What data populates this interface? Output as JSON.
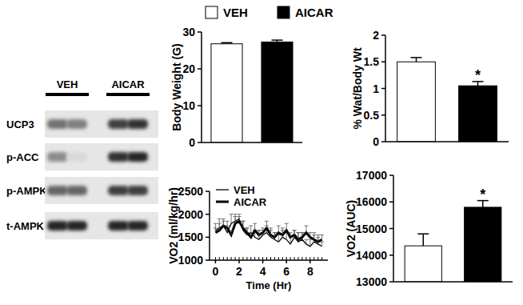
{
  "figure_legend": [
    {
      "name": "VEH",
      "color": "#ffffff"
    },
    {
      "name": "AICAR",
      "color": "#000000"
    }
  ],
  "blot": {
    "columns": [
      "VEH",
      "AICAR"
    ],
    "rows": [
      {
        "label": "UCP3",
        "band_intensity": [
          0.55,
          0.5,
          0.75,
          0.8
        ]
      },
      {
        "label": "p-ACC",
        "band_intensity": [
          0.45,
          0.15,
          0.8,
          0.85
        ]
      },
      {
        "label": "p-AMPK",
        "band_intensity": [
          0.6,
          0.6,
          0.75,
          0.75
        ]
      },
      {
        "label": "t-AMPK",
        "band_intensity": [
          0.85,
          0.85,
          0.85,
          0.85
        ]
      }
    ]
  },
  "chart_data": [
    {
      "type": "bar",
      "y_label": "Body Weight (G)",
      "categories": [
        null,
        null
      ],
      "values": [
        26.8,
        27.3
      ],
      "error": [
        0.3,
        0.5
      ],
      "colors": [
        "#ffffff",
        "#000000"
      ],
      "ylim": [
        0,
        30
      ],
      "yticks": [
        0,
        10,
        20,
        30
      ]
    },
    {
      "type": "bar",
      "y_label": "% Wat/Body Wt",
      "categories": [
        null,
        null
      ],
      "values": [
        1.5,
        1.05
      ],
      "error": [
        0.08,
        0.08
      ],
      "colors": [
        "#ffffff",
        "#000000"
      ],
      "ylim": [
        0,
        2
      ],
      "yticks": [
        0,
        0.5,
        1,
        1.5,
        2
      ],
      "annotation": "*"
    },
    {
      "type": "line",
      "x_label": "Time (Hr)",
      "y_label": "VO2 (ml/kg/hr)",
      "x": [
        0,
        0.33,
        0.67,
        1,
        1.33,
        1.67,
        2,
        2.33,
        2.67,
        3,
        3.33,
        3.67,
        4,
        4.33,
        4.67,
        5,
        5.33,
        5.67,
        6,
        6.33,
        6.67,
        7,
        7.33,
        7.67,
        8,
        8.33,
        8.67,
        9
      ],
      "series": [
        {
          "name": "VEH",
          "color": "#000000",
          "line_style": "thin",
          "values": [
            1650,
            1700,
            1750,
            1600,
            1800,
            1850,
            1900,
            1650,
            1550,
            1600,
            1500,
            1450,
            1550,
            1600,
            1500,
            1450,
            1400,
            1500,
            1450,
            1350,
            1500,
            1400,
            1450,
            1350,
            1300,
            1400,
            1350,
            1300
          ],
          "error": [
            150,
            200,
            150,
            150,
            200,
            150,
            100,
            200,
            150,
            150,
            150,
            200,
            100,
            150,
            200,
            150,
            150,
            200,
            150,
            150,
            150,
            200,
            150,
            100,
            150,
            200,
            150,
            100
          ]
        },
        {
          "name": "AICAR",
          "color": "#000000",
          "line_style": "thick",
          "values": [
            1600,
            1650,
            1750,
            1700,
            1550,
            1800,
            1850,
            1700,
            1600,
            1500,
            1650,
            1550,
            1600,
            1700,
            1550,
            1500,
            1600,
            1550,
            1650,
            1500,
            1550,
            1450,
            1500,
            1600,
            1500,
            1450,
            1400,
            1450
          ],
          "error": [
            100,
            150,
            100,
            150,
            100,
            150,
            100,
            150,
            100,
            100,
            150,
            100,
            100,
            150,
            100,
            100,
            150,
            100,
            150,
            100,
            100,
            150,
            100,
            150,
            100,
            100,
            150,
            100
          ]
        }
      ],
      "xlim": [
        -0.5,
        9.5
      ],
      "xticks": [
        0,
        2,
        4,
        6,
        8
      ],
      "ylim": [
        1000,
        2500
      ],
      "yticks": [
        1000,
        1500,
        2000,
        2500
      ],
      "legend": "top-left"
    },
    {
      "type": "bar",
      "y_label": "VO2 (AUC)",
      "categories": [
        null,
        null
      ],
      "values": [
        14350,
        15800
      ],
      "error": [
        450,
        250
      ],
      "colors": [
        "#ffffff",
        "#000000"
      ],
      "ylim": [
        13000,
        17000
      ],
      "yticks": [
        13000,
        14000,
        15000,
        16000,
        17000
      ],
      "annotation": "*"
    }
  ]
}
